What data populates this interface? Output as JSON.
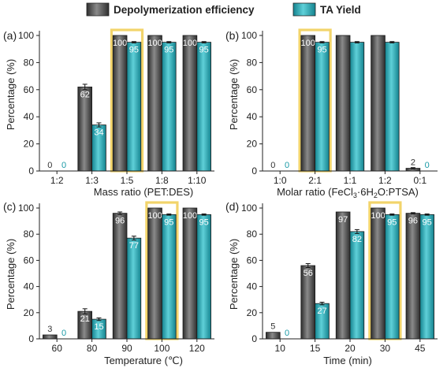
{
  "legend": {
    "items": [
      {
        "label": "Depolymerization efficiency",
        "color": "#4a4a4a"
      },
      {
        "label": "TA Yield",
        "color": "#2bb3bf"
      }
    ]
  },
  "colors": {
    "series_a_dark": "#2e2e2e",
    "series_a_light": "#8a8a8a",
    "series_b_dark": "#14838f",
    "series_b_light": "#5fd0d8",
    "highlight": "#f2d46b"
  },
  "chart_data": [
    {
      "panel": "(a)",
      "type": "bar",
      "xlabel": "Mass ratio (PET:DES)",
      "ylabel": "Percentage (%)",
      "ylim": [
        0,
        100
      ],
      "yticks": [
        "0",
        "20",
        "40",
        "60",
        "80",
        "100"
      ],
      "categories": [
        "1:2",
        "1:3",
        "1:5",
        "1:8",
        "1:10"
      ],
      "series": [
        {
          "name": "Depolymerization efficiency",
          "values": [
            0,
            62,
            100,
            100,
            100
          ],
          "errors": [
            0,
            2,
            0,
            0,
            0
          ],
          "labels": [
            "0",
            "62",
            "100",
            "100",
            "100"
          ]
        },
        {
          "name": "TA Yield",
          "values": [
            0,
            34,
            95,
            95,
            95
          ],
          "errors": [
            0,
            1.5,
            0.5,
            0.5,
            0.5
          ],
          "labels": [
            "0",
            "34",
            "95",
            "95",
            "95"
          ]
        }
      ],
      "highlight_category": 2
    },
    {
      "panel": "(b)",
      "type": "bar",
      "xlabel_parts": [
        "Molar ratio (FeCl",
        "3",
        "·6H",
        "2",
        "O:PTSA)"
      ],
      "ylabel": "Percentage (%)",
      "ylim": [
        0,
        100
      ],
      "yticks": [
        "0",
        "20",
        "40",
        "60",
        "80",
        "100"
      ],
      "categories": [
        "1:0",
        "2:1",
        "1:1",
        "1:2",
        "0:1"
      ],
      "series": [
        {
          "name": "Depolymerization efficiency",
          "values": [
            0,
            100,
            100,
            100,
            2
          ],
          "errors": [
            0,
            0,
            0,
            0,
            0.5
          ],
          "labels": [
            "0",
            "100",
            "",
            "",
            "2"
          ]
        },
        {
          "name": "TA Yield",
          "values": [
            0,
            95,
            95,
            95,
            0
          ],
          "errors": [
            0,
            0.5,
            0.5,
            0.5,
            0
          ],
          "labels": [
            "0",
            "95",
            "",
            "",
            "0"
          ]
        }
      ],
      "highlight_category": 1
    },
    {
      "panel": "(c)",
      "type": "bar",
      "xlabel": "Temperature (℃)",
      "ylabel": "Percentage (%)",
      "ylim": [
        0,
        100
      ],
      "yticks": [
        "0",
        "20",
        "40",
        "60",
        "80",
        "100"
      ],
      "categories": [
        "60",
        "80",
        "90",
        "100",
        "120"
      ],
      "series": [
        {
          "name": "Depolymerization efficiency",
          "values": [
            3,
            21,
            96,
            100,
            100
          ],
          "errors": [
            0,
            2,
            1,
            0,
            0
          ],
          "labels": [
            "3",
            "21",
            "96",
            "100",
            "100"
          ]
        },
        {
          "name": "TA Yield",
          "values": [
            0,
            15,
            77,
            95,
            95
          ],
          "errors": [
            0,
            1,
            1.5,
            0.5,
            0.5
          ],
          "labels": [
            "0",
            "15",
            "77",
            "95",
            "95"
          ]
        }
      ],
      "highlight_category": 3
    },
    {
      "panel": "(d)",
      "type": "bar",
      "xlabel": "Time (min)",
      "ylabel": "Percentage (%)",
      "ylim": [
        0,
        100
      ],
      "yticks": [
        "0",
        "20",
        "40",
        "60",
        "80",
        "100"
      ],
      "categories": [
        "10",
        "15",
        "20",
        "30",
        "45"
      ],
      "series": [
        {
          "name": "Depolymerization efficiency",
          "values": [
            5,
            56,
            97,
            100,
            96
          ],
          "errors": [
            0,
            1.5,
            0,
            0,
            0.5
          ],
          "labels": [
            "5",
            "56",
            "97",
            "100",
            "96"
          ]
        },
        {
          "name": "TA Yield",
          "values": [
            0,
            27,
            82,
            95,
            95
          ],
          "errors": [
            0,
            1,
            1.5,
            0.5,
            0.5
          ],
          "labels": [
            "0",
            "27",
            "82",
            "95",
            "95"
          ]
        }
      ],
      "highlight_category": 3
    }
  ]
}
